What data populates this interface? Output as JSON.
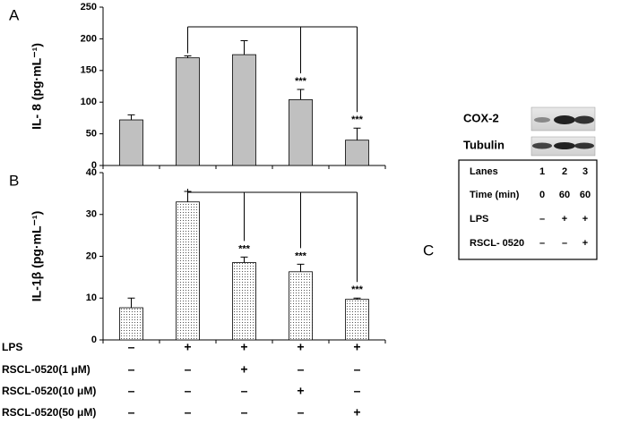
{
  "chart_data": [
    {
      "type": "bar",
      "panel": "A",
      "ylabel": "IL- 8 (pg·mL⁻¹)",
      "categories": [
        null,
        null,
        null,
        null,
        null
      ],
      "series": [
        {
          "color": "#c0c0c0",
          "values": [
            72,
            170,
            175,
            104,
            40
          ],
          "errors": [
            8,
            3,
            22,
            16,
            19
          ]
        }
      ],
      "significance": [
        null,
        null,
        null,
        "***",
        "***"
      ],
      "ylim": [
        0,
        250
      ],
      "yticks": [
        0,
        50,
        100,
        150,
        200,
        250
      ]
    },
    {
      "type": "bar",
      "panel": "B",
      "ylabel": "IL-1β (pg·mL⁻¹)",
      "categories": [
        null,
        null,
        null,
        null,
        null
      ],
      "series": [
        {
          "color": "#ffffff",
          "fill_pattern": "dotted",
          "values": [
            7.7,
            33,
            18.5,
            16.3,
            9.7
          ],
          "errors": [
            2.3,
            2.5,
            1.3,
            1.8,
            0.3
          ]
        }
      ],
      "significance": [
        null,
        null,
        "***",
        "***",
        "***"
      ],
      "ylim": [
        0,
        40
      ],
      "yticks": [
        0,
        10,
        20,
        30,
        40
      ]
    }
  ],
  "conditions": {
    "rows": [
      {
        "label": "LPS",
        "cells": [
          "–",
          "+",
          "+",
          "+",
          "+"
        ]
      },
      {
        "label": "RSCL-0520(1 μM)",
        "cells": [
          "–",
          "–",
          "+",
          "–",
          "–"
        ]
      },
      {
        "label": "RSCL-0520(10 μM)",
        "cells": [
          "–",
          "–",
          "–",
          "+",
          "–"
        ]
      },
      {
        "label": "RSCL-0520(50 μM)",
        "cells": [
          "–",
          "–",
          "–",
          "–",
          "+"
        ]
      }
    ]
  },
  "panel_c": {
    "panel": "C",
    "blots": [
      "COX-2",
      "Tubulin"
    ],
    "table": {
      "rows": [
        [
          "Lanes",
          "1",
          "2",
          "3"
        ],
        [
          "Time (min)",
          "0",
          "60",
          "60"
        ],
        [
          "LPS",
          "–",
          "+",
          "+"
        ],
        [
          "RSCL- 0520",
          "–",
          "–",
          "+"
        ]
      ]
    }
  }
}
